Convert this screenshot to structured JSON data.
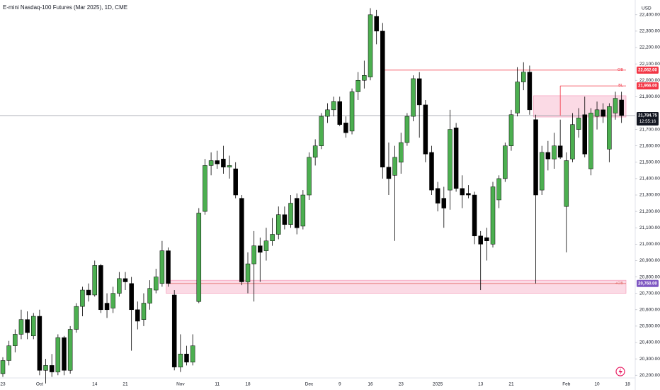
{
  "header": {
    "title": "E-mini Nasdaq-100 Futures (Mar 2025), 1D, CME",
    "currency": "USD"
  },
  "chart_data": {
    "type": "candlestick",
    "up_color": "#4caf50",
    "down_color": "#000000",
    "categories": [
      "23",
      null,
      null,
      null,
      null,
      null,
      "Oct",
      null,
      null,
      null,
      null,
      null,
      null,
      null,
      null,
      "14",
      null,
      null,
      null,
      null,
      "21",
      null,
      null,
      null,
      null,
      null,
      null,
      null,
      null,
      "Nov",
      null,
      null,
      null,
      null,
      null,
      "11",
      null,
      null,
      null,
      null,
      "18",
      null,
      null,
      null,
      null,
      null,
      null,
      null,
      null,
      null,
      "Dec",
      null,
      null,
      null,
      null,
      "9",
      null,
      null,
      null,
      null,
      "16",
      null,
      null,
      null,
      null,
      "23",
      null,
      null,
      null,
      null,
      null,
      "2025",
      null,
      null,
      null,
      null,
      null,
      null,
      "13",
      null,
      null,
      null,
      null,
      "21",
      null,
      null,
      null,
      null,
      null,
      null,
      null,
      null,
      "Feb",
      null,
      null,
      null,
      null,
      "10",
      null,
      null,
      null,
      null,
      "18"
    ],
    "open": [
      20210,
      20290,
      20380,
      20450,
      20540,
      20440,
      20560,
      20230,
      20260,
      20220,
      20430,
      20230,
      20480,
      20620,
      20720,
      20690,
      20870,
      20640,
      20610,
      20700,
      20790,
      20760,
      20600,
      20540,
      20640,
      20720,
      20760,
      20960,
      20690,
      20250,
      20330,
      20280,
      20650,
      21200,
      21480,
      21510,
      21520,
      21470,
      21460,
      21280,
      20770,
      20880,
      20990,
      20960,
      21020,
      21060,
      21180,
      21120,
      21280,
      21110,
      21300,
      21530,
      21600,
      21780,
      21820,
      21870,
      21740,
      21690,
      21930,
      22000,
      22020,
      22390,
      22300,
      21470,
      21420,
      21500,
      21620,
      21780,
      22010,
      21850,
      21560,
      21340,
      21280,
      21330,
      21710,
      21340,
      21310,
      21300,
      21050,
      21040,
      21000,
      21270,
      21400,
      21600,
      21800,
      21990,
      22050,
      21760,
      21330,
      21560,
      21520,
      21600,
      21230,
      21520,
      21700,
      21790,
      21460,
      21780,
      21820,
      21580,
      21800,
      21880,
      null
    ],
    "high": [
      20310,
      20410,
      20480,
      20600,
      20590,
      20580,
      20600,
      20300,
      20330,
      20450,
      20440,
      20500,
      20640,
      20740,
      20760,
      20900,
      20880,
      20700,
      20740,
      20830,
      20830,
      20800,
      20650,
      20700,
      20780,
      20850,
      21020,
      20980,
      20720,
      20450,
      20380,
      20450,
      21220,
      21520,
      21560,
      21570,
      21600,
      21540,
      21500,
      21300,
      20950,
      21080,
      21040,
      21100,
      21160,
      21230,
      21230,
      21300,
      21310,
      21330,
      21560,
      21640,
      21800,
      21860,
      21900,
      21900,
      21780,
      21950,
      22050,
      22120,
      22440,
      22430,
      22350,
      21620,
      21600,
      21680,
      21800,
      22030,
      22050,
      21880,
      21600,
      21380,
      21350,
      21820,
      21740,
      21420,
      21360,
      21320,
      21080,
      21100,
      21380,
      21420,
      21620,
      21820,
      22080,
      22110,
      22090,
      21790,
      21600,
      21630,
      21680,
      21760,
      21560,
      21800,
      21830,
      21900,
      21830,
      21870,
      21860,
      21860,
      21930,
      21930,
      null
    ],
    "low": [
      20190,
      20260,
      20340,
      20420,
      20420,
      20420,
      20200,
      20150,
      20190,
      20200,
      20200,
      20210,
      20460,
      20560,
      20650,
      20680,
      20580,
      20550,
      20580,
      20680,
      20720,
      20350,
      20480,
      20500,
      20600,
      20700,
      20740,
      20740,
      20230,
      20220,
      20260,
      20260,
      20640,
      21180,
      21420,
      21460,
      21430,
      21400,
      21280,
      20750,
      20700,
      20650,
      20770,
      20900,
      20990,
      21030,
      21090,
      21100,
      21060,
      21090,
      21270,
      21480,
      21580,
      21740,
      21780,
      21720,
      21650,
      21670,
      21880,
      21950,
      22000,
      22220,
      21400,
      21300,
      21020,
      21430,
      21600,
      21750,
      21650,
      21500,
      21300,
      21200,
      21100,
      21210,
      21320,
      21220,
      21280,
      21000,
      20720,
      20900,
      20980,
      21220,
      21380,
      21570,
      21780,
      21940,
      21790,
      20760,
      21300,
      21450,
      21460,
      21520,
      20950,
      21500,
      21650,
      21530,
      21420,
      21700,
      21740,
      21500,
      21760,
      21740,
      null
    ],
    "close": [
      20290,
      20380,
      20450,
      20540,
      20460,
      20560,
      20230,
      20260,
      20220,
      20430,
      20230,
      20480,
      20620,
      20720,
      20690,
      20870,
      20600,
      20600,
      20700,
      20790,
      20770,
      20600,
      20530,
      20640,
      20730,
      20800,
      20960,
      20760,
      20250,
      20330,
      20280,
      20380,
      21190,
      21480,
      21510,
      21490,
      21470,
      21480,
      21300,
      20770,
      20880,
      20990,
      20950,
      21020,
      21060,
      21180,
      21120,
      21250,
      21100,
      21300,
      21530,
      21600,
      21780,
      21820,
      21870,
      21730,
      21680,
      21930,
      22000,
      22030,
      22400,
      22300,
      21470,
      21400,
      21530,
      21620,
      21780,
      22010,
      21850,
      21550,
      21330,
      21250,
      21220,
      21700,
      21340,
      21300,
      21300,
      21050,
      21000,
      21020,
      21350,
      21400,
      21600,
      21790,
      21990,
      22050,
      21820,
      21300,
      21560,
      21520,
      21600,
      21530,
      21510,
      21730,
      21770,
      21550,
      21800,
      21820,
      21780,
      21840,
      21890,
      21784.75,
      null
    ],
    "ylim": [
      20188,
      22490
    ],
    "yticks": [
      {
        "value": 20200,
        "label": "20,200.00"
      },
      {
        "value": 20300,
        "label": "20,300.00"
      },
      {
        "value": 20400,
        "label": "20,400.00"
      },
      {
        "value": 20500,
        "label": "20,500.00"
      },
      {
        "value": 20600,
        "label": "20,600.00"
      },
      {
        "value": 20700,
        "label": "20,700.00"
      },
      {
        "value": 20800,
        "label": "20,800.00"
      },
      {
        "value": 20900,
        "label": "20,900.00"
      },
      {
        "value": 21000,
        "label": "21,000.00"
      },
      {
        "value": 21100,
        "label": "21,100.00"
      },
      {
        "value": 21200,
        "label": "21,200.00"
      },
      {
        "value": 21300,
        "label": "21,300.00"
      },
      {
        "value": 21400,
        "label": "21,400.00"
      },
      {
        "value": 21500,
        "label": "21,500.00"
      },
      {
        "value": 21600,
        "label": "21,600.00"
      },
      {
        "value": 21700,
        "label": "21,700.00"
      },
      {
        "value": 21900,
        "label": "21,900.00"
      },
      {
        "value": 22000,
        "label": "22,000.00"
      },
      {
        "value": 22100,
        "label": "22,100.00"
      },
      {
        "value": 22200,
        "label": "22,200.00"
      },
      {
        "value": 22300,
        "label": "22,300.00"
      },
      {
        "value": 22400,
        "label": "22,400.00"
      }
    ],
    "last_price": {
      "value": 21784.75,
      "label": "21,784.75",
      "countdown": "12:55:16"
    },
    "zones": [
      {
        "from_index": 87,
        "range": [
          21776,
          21906
        ],
        "color": "#f8bbd0"
      },
      {
        "from_index": 27,
        "range": [
          20700,
          20780
        ],
        "color": "#f8bbd0"
      }
    ],
    "levels": [
      {
        "text": "-OB",
        "value": 22062,
        "label": "22,062.00",
        "from_index": 62,
        "color": "#f23645",
        "badge_color": "#f23645"
      },
      {
        "text": "BL",
        "value": 21966,
        "label": "21,966.00",
        "from_index": 91,
        "color": "#f23645",
        "badge_color": "#f23645"
      },
      {
        "text": "+OB",
        "value": 20760,
        "label": "20,760.00",
        "from_index": 27,
        "color": "#e57373",
        "badge_color": "#7e57c2"
      }
    ]
  }
}
